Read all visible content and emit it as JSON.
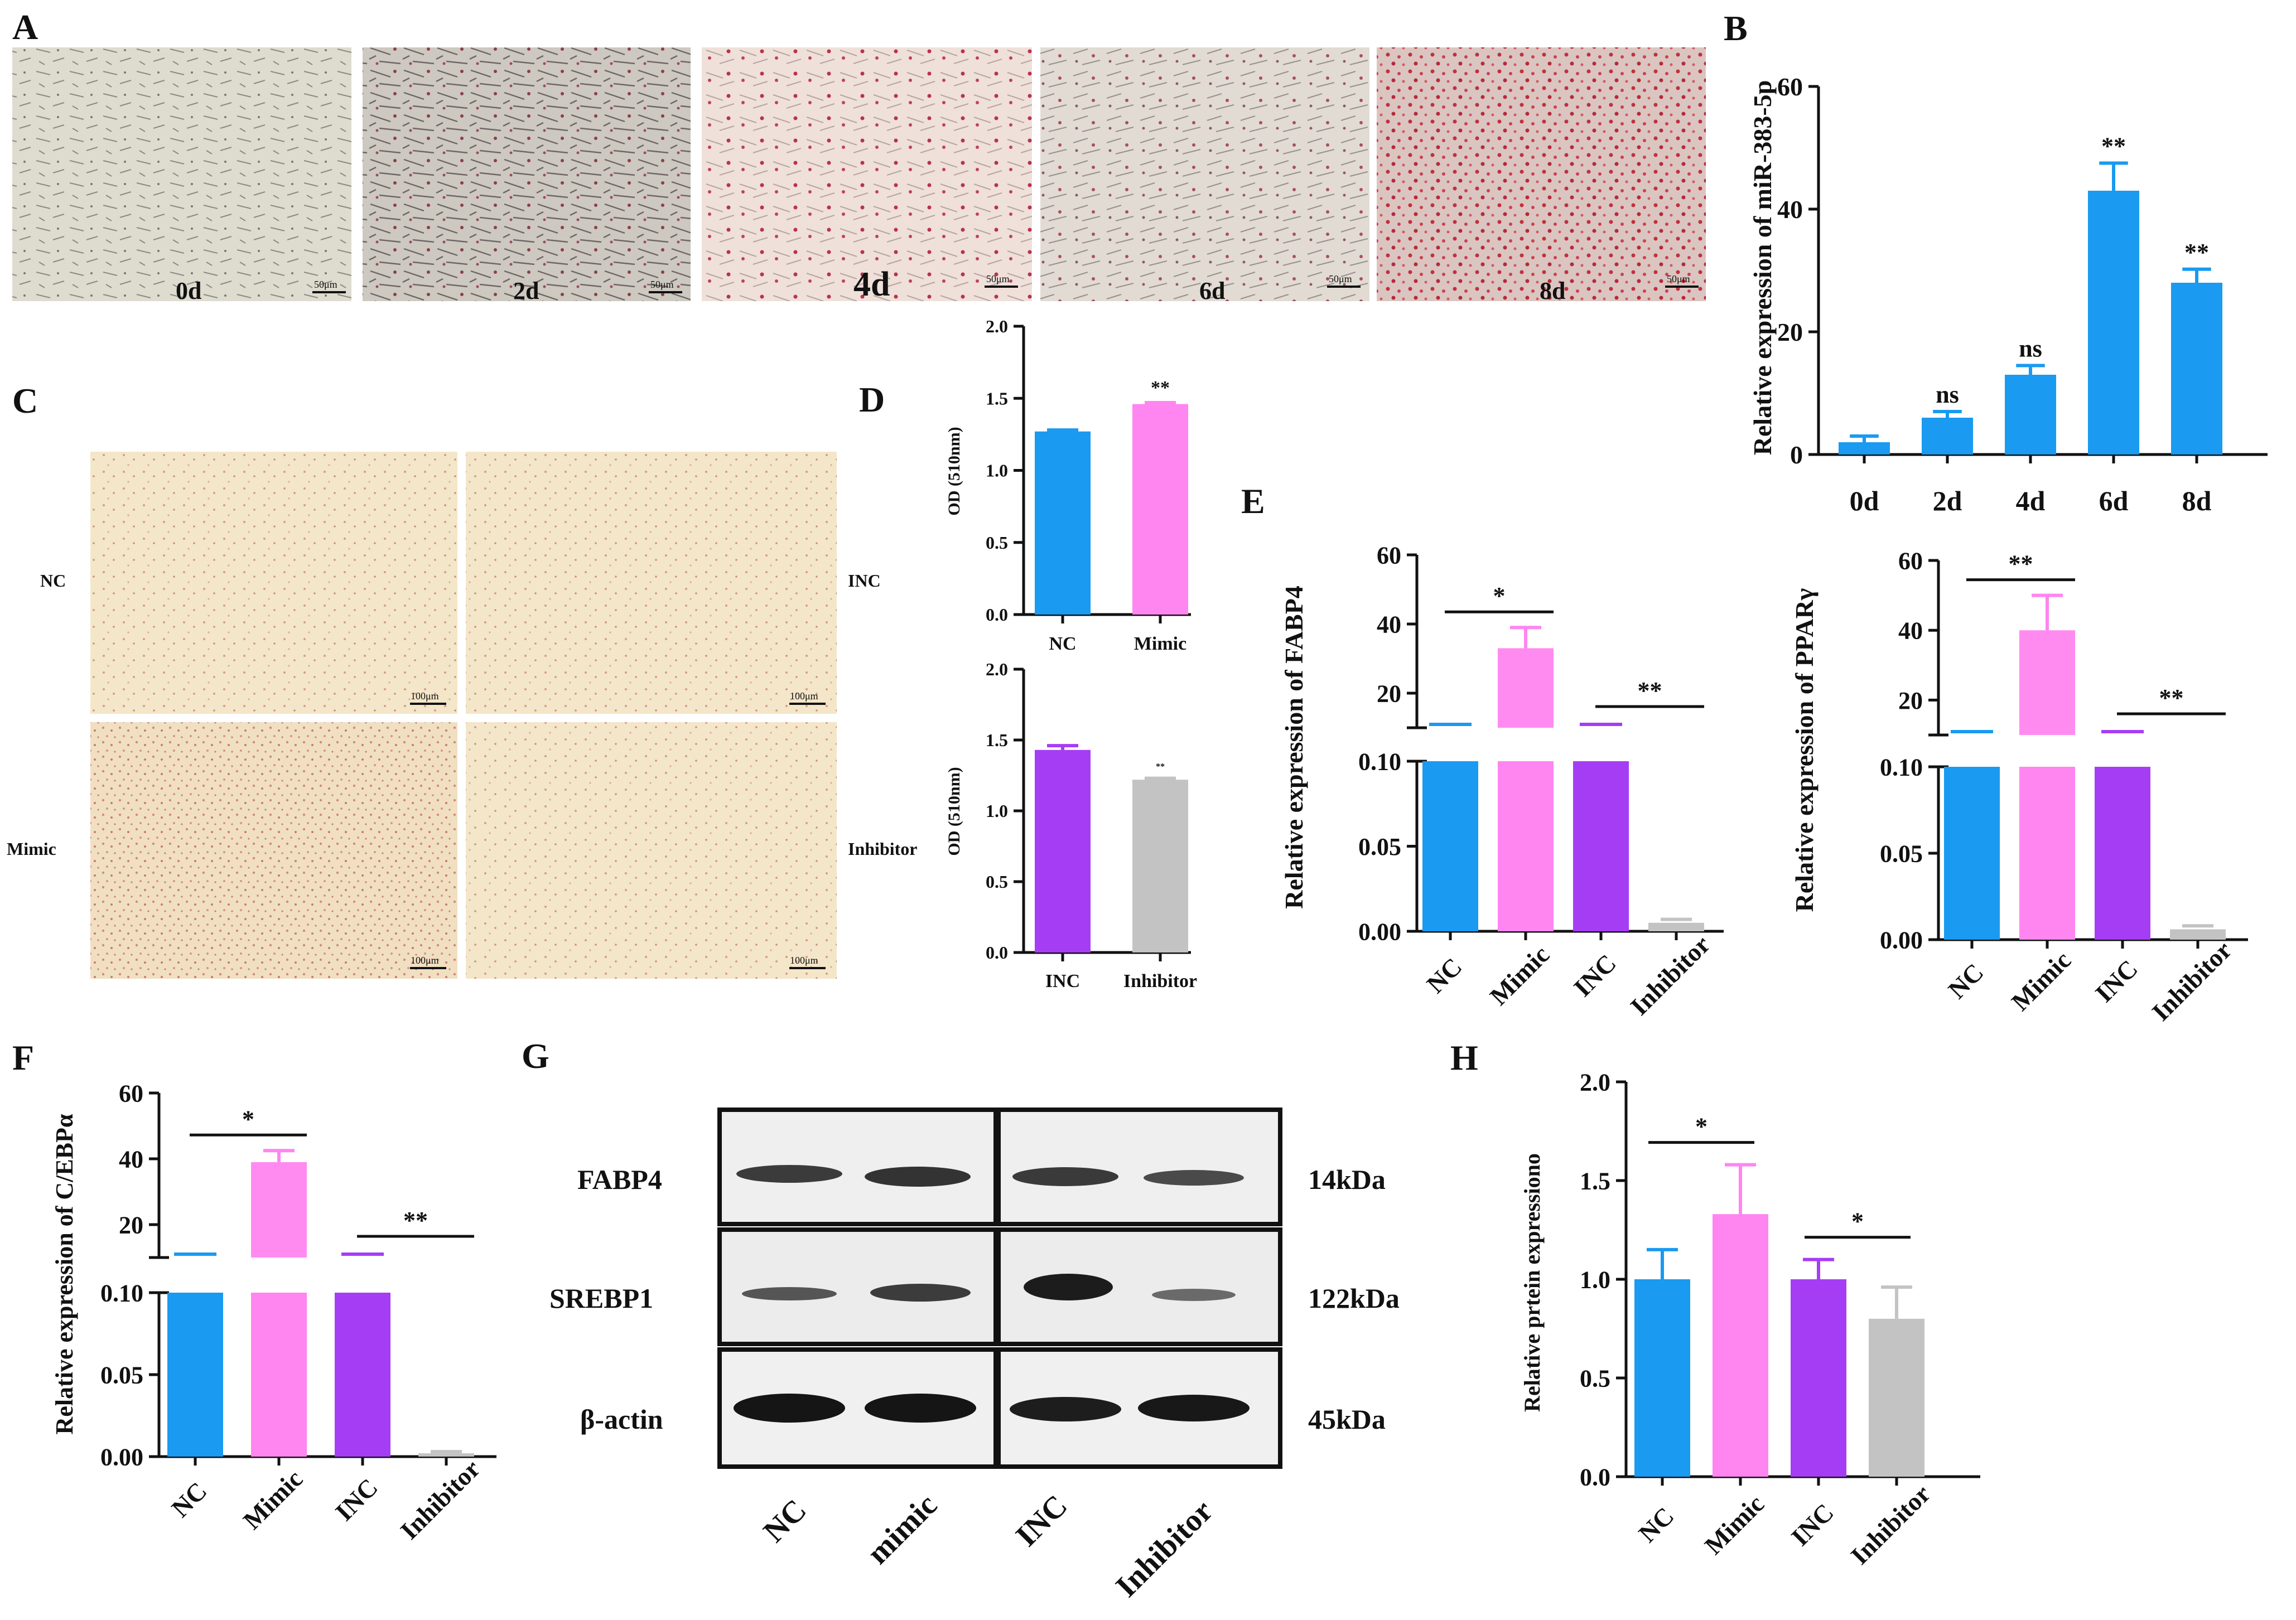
{
  "panels": {
    "A": {
      "letter": "A",
      "tiles": [
        {
          "label": "0d",
          "scale": "50μm"
        },
        {
          "label": "2d",
          "scale": "50μm"
        },
        {
          "label": "4d",
          "scale": "50μm"
        },
        {
          "label": "6d",
          "scale": "50μm"
        },
        {
          "label": "8d",
          "scale": "50μm"
        }
      ]
    },
    "C": {
      "letter": "C",
      "tiles": [
        {
          "label": "NC",
          "scale": "100μm"
        },
        {
          "label": "INC",
          "scale": "100μm"
        },
        {
          "label": "Mimic",
          "scale": "100μm"
        },
        {
          "label": "Inhibitor",
          "scale": "100μm"
        }
      ]
    },
    "G": {
      "letter": "G",
      "rows": [
        {
          "protein": "FABP4",
          "size": "14kDa"
        },
        {
          "protein": "SREBP1",
          "size": "122kDa"
        },
        {
          "protein": "β-actin",
          "size": "45kDa"
        }
      ],
      "lanes": [
        "NC",
        "mimic",
        "INC",
        "Inhibitor"
      ]
    }
  },
  "colors": {
    "blue": "#1a9af0",
    "pink": "#ff85f0",
    "purple": "#a53df5",
    "gray": "#c3c3c3"
  },
  "chart_data": [
    {
      "id": "B",
      "letter": "B",
      "type": "bar",
      "categories": [
        "0d",
        "2d",
        "4d",
        "6d",
        "8d"
      ],
      "values": [
        2,
        6,
        13,
        43,
        28
      ],
      "errors": [
        1,
        1,
        1.5,
        4.5,
        2.2
      ],
      "significance": [
        "",
        "ns",
        "ns",
        "**",
        "**"
      ],
      "ylabel": "Relative expression of miR-383-5p",
      "ylim": [
        0,
        60
      ],
      "yticks": [
        "0",
        "20",
        "40",
        "60"
      ],
      "colors": [
        "blue",
        "blue",
        "blue",
        "blue",
        "blue"
      ]
    },
    {
      "id": "D1",
      "letter": "D",
      "type": "bar",
      "categories": [
        "NC",
        "Mimic"
      ],
      "values": [
        1.27,
        1.46
      ],
      "errors": [
        0.01,
        0.01
      ],
      "significance": [
        "",
        "**"
      ],
      "ylabel": "OD (510nm)",
      "ylim": [
        0,
        2.0
      ],
      "yticks": [
        "0.0",
        "0.5",
        "1.0",
        "1.5",
        "2.0"
      ],
      "colors": [
        "blue",
        "pink"
      ]
    },
    {
      "id": "D2",
      "type": "bar",
      "categories": [
        "INC",
        "Inhibitor"
      ],
      "values": [
        1.43,
        1.22
      ],
      "errors": [
        0.03,
        0.01
      ],
      "significance": [
        "",
        "**"
      ],
      "ylabel": "OD (510nm)",
      "ylim": [
        0,
        2.0
      ],
      "yticks": [
        "0.0",
        "0.5",
        "1.0",
        "1.5",
        "2.0"
      ],
      "colors": [
        "purple",
        "gray"
      ]
    },
    {
      "id": "E1",
      "letter": "E",
      "type": "bar",
      "categories": [
        "NC",
        "Mimic",
        "INC",
        "Inhibitor"
      ],
      "values": [
        1,
        33,
        1,
        0.005
      ],
      "errors": [
        0.2,
        6,
        0.2,
        0.002
      ],
      "axis_break": true,
      "lower_ylim": [
        0,
        0.1
      ],
      "lower_yticks": [
        "0.00",
        "0.05",
        "0.10"
      ],
      "upper_ylim": [
        0,
        60
      ],
      "upper_yticks": [
        "20",
        "40",
        "60"
      ],
      "comparisons": [
        {
          "pair": [
            "NC",
            "Mimic"
          ],
          "label": "*"
        },
        {
          "pair": [
            "INC",
            "Inhibitor"
          ],
          "label": "**"
        }
      ],
      "ylabel": "Relative expression of FABP4",
      "colors": [
        "blue",
        "pink",
        "purple",
        "gray"
      ]
    },
    {
      "id": "E2",
      "type": "bar",
      "categories": [
        "NC",
        "Mimic",
        "INC",
        "Inhibitor"
      ],
      "values": [
        1,
        40,
        1,
        0.006
      ],
      "errors": [
        0.2,
        10,
        0.2,
        0.002
      ],
      "axis_break": true,
      "lower_ylim": [
        0,
        0.1
      ],
      "lower_yticks": [
        "0.00",
        "0.05",
        "0.10"
      ],
      "upper_ylim": [
        0,
        60
      ],
      "upper_yticks": [
        "20",
        "40",
        "60"
      ],
      "comparisons": [
        {
          "pair": [
            "NC",
            "Mimic"
          ],
          "label": "**"
        },
        {
          "pair": [
            "INC",
            "Inhibitor"
          ],
          "label": "**"
        }
      ],
      "ylabel": "Relative expression of PPARγ",
      "colors": [
        "blue",
        "pink",
        "purple",
        "gray"
      ]
    },
    {
      "id": "F",
      "letter": "F",
      "type": "bar",
      "categories": [
        "NC",
        "Mimic",
        "INC",
        "Inhibitor"
      ],
      "values": [
        1,
        39,
        1,
        0.002
      ],
      "errors": [
        0.2,
        3.5,
        0.2,
        0.001
      ],
      "axis_break": true,
      "lower_ylim": [
        0,
        0.1
      ],
      "lower_yticks": [
        "0.00",
        "0.05",
        "0.10"
      ],
      "upper_ylim": [
        0,
        60
      ],
      "upper_yticks": [
        "20",
        "40",
        "60"
      ],
      "comparisons": [
        {
          "pair": [
            "NC",
            "Mimic"
          ],
          "label": "*"
        },
        {
          "pair": [
            "INC",
            "Inhibitor"
          ],
          "label": "**"
        }
      ],
      "ylabel": "Relative expression of C/EBPα",
      "colors": [
        "blue",
        "pink",
        "purple",
        "gray"
      ]
    },
    {
      "id": "H",
      "letter": "H",
      "type": "bar",
      "categories": [
        "NC",
        "Mimic",
        "INC",
        "Inhibitor"
      ],
      "values": [
        1.0,
        1.33,
        1.0,
        0.8
      ],
      "errors": [
        0.15,
        0.25,
        0.1,
        0.16
      ],
      "comparisons": [
        {
          "pair": [
            "NC",
            "Mimic"
          ],
          "label": "*"
        },
        {
          "pair": [
            "INC",
            "Inhibitor"
          ],
          "label": "*"
        }
      ],
      "ylabel": "Relative prtein expressiono",
      "ylim": [
        0,
        2.0
      ],
      "yticks": [
        "0.0",
        "0.5",
        "1.0",
        "1.5",
        "2.0"
      ],
      "colors": [
        "blue",
        "pink",
        "purple",
        "gray"
      ]
    }
  ]
}
